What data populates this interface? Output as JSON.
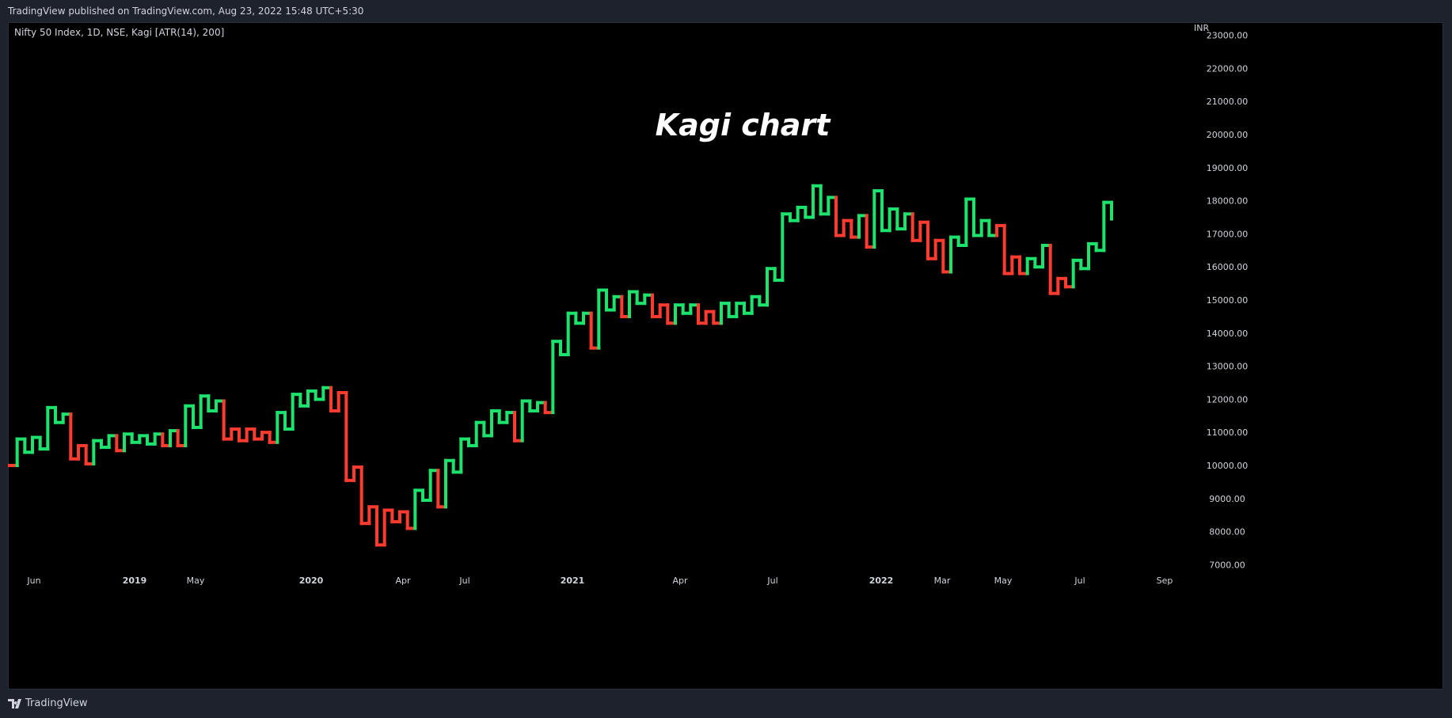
{
  "header": {
    "publish_text": "TradingView published on TradingView.com, Aug 23, 2022 15:48 UTC+5:30"
  },
  "legend": {
    "symbol_text": "Nifty 50 Index, 1D, NSE, Kagi [ATR(14), 200]"
  },
  "footer": {
    "brand": "TradingView",
    "logo_icon": "tradingview-logo-icon"
  },
  "colors": {
    "up": "#1de36c",
    "down": "#ff3b2f",
    "background": "#000000",
    "frame": "#1e222d"
  },
  "chart_data": {
    "type": "kagi",
    "title": "Kagi chart",
    "currency": "INR",
    "ylim": [
      6700,
      23300
    ],
    "y_ticks": [
      "7000.00",
      "8000.00",
      "9000.00",
      "10000.00",
      "11000.00",
      "12000.00",
      "13000.00",
      "14000.00",
      "15000.00",
      "16000.00",
      "17000.00",
      "18000.00",
      "19000.00",
      "20000.00",
      "21000.00",
      "22000.00",
      "23000.00"
    ],
    "x_ticks": [
      "Jun",
      "2019",
      "May",
      "2020",
      "Apr",
      "Jul",
      "2021",
      "Apr",
      "Jul",
      "2022",
      "Mar",
      "May",
      "Jul",
      "Sep"
    ],
    "x_bold": [
      "2019",
      "2020",
      "2021",
      "2022"
    ],
    "lines": [
      {
        "y": 10000,
        "c": "down"
      },
      {
        "y": 10800,
        "c": "up"
      },
      {
        "y": 10400,
        "c": "up"
      },
      {
        "y": 10850,
        "c": "up"
      },
      {
        "y": 10500,
        "c": "up"
      },
      {
        "y": 11750,
        "c": "up"
      },
      {
        "y": 11300,
        "c": "up"
      },
      {
        "y": 11550,
        "c": "up"
      },
      {
        "y": 10200,
        "c": "down"
      },
      {
        "y": 10600,
        "c": "down"
      },
      {
        "y": 10050,
        "c": "down"
      },
      {
        "y": 10750,
        "c": "up"
      },
      {
        "y": 10550,
        "c": "up"
      },
      {
        "y": 10900,
        "c": "up"
      },
      {
        "y": 10450,
        "c": "down"
      },
      {
        "y": 10950,
        "c": "up"
      },
      {
        "y": 10700,
        "c": "up"
      },
      {
        "y": 10900,
        "c": "up"
      },
      {
        "y": 10650,
        "c": "up"
      },
      {
        "y": 10950,
        "c": "up"
      },
      {
        "y": 10600,
        "c": "down"
      },
      {
        "y": 11050,
        "c": "up"
      },
      {
        "y": 10600,
        "c": "down"
      },
      {
        "y": 11800,
        "c": "up"
      },
      {
        "y": 11150,
        "c": "up"
      },
      {
        "y": 12100,
        "c": "up"
      },
      {
        "y": 11650,
        "c": "up"
      },
      {
        "y": 11950,
        "c": "up"
      },
      {
        "y": 10800,
        "c": "down"
      },
      {
        "y": 11100,
        "c": "down"
      },
      {
        "y": 10750,
        "c": "down"
      },
      {
        "y": 11100,
        "c": "down"
      },
      {
        "y": 10800,
        "c": "down"
      },
      {
        "y": 11000,
        "c": "down"
      },
      {
        "y": 10700,
        "c": "down"
      },
      {
        "y": 11600,
        "c": "up"
      },
      {
        "y": 11100,
        "c": "up"
      },
      {
        "y": 12150,
        "c": "up"
      },
      {
        "y": 11800,
        "c": "up"
      },
      {
        "y": 12250,
        "c": "up"
      },
      {
        "y": 12000,
        "c": "up"
      },
      {
        "y": 12350,
        "c": "up"
      },
      {
        "y": 11650,
        "c": "down"
      },
      {
        "y": 12200,
        "c": "down"
      },
      {
        "y": 9550,
        "c": "down"
      },
      {
        "y": 9950,
        "c": "down"
      },
      {
        "y": 8250,
        "c": "down"
      },
      {
        "y": 8750,
        "c": "down"
      },
      {
        "y": 7600,
        "c": "down"
      },
      {
        "y": 8650,
        "c": "down"
      },
      {
        "y": 8300,
        "c": "down"
      },
      {
        "y": 8600,
        "c": "down"
      },
      {
        "y": 8100,
        "c": "down"
      },
      {
        "y": 9250,
        "c": "up"
      },
      {
        "y": 8950,
        "c": "up"
      },
      {
        "y": 9850,
        "c": "up"
      },
      {
        "y": 8750,
        "c": "down"
      },
      {
        "y": 10150,
        "c": "up"
      },
      {
        "y": 9800,
        "c": "up"
      },
      {
        "y": 10800,
        "c": "up"
      },
      {
        "y": 10600,
        "c": "up"
      },
      {
        "y": 11300,
        "c": "up"
      },
      {
        "y": 10900,
        "c": "up"
      },
      {
        "y": 11650,
        "c": "up"
      },
      {
        "y": 11300,
        "c": "up"
      },
      {
        "y": 11600,
        "c": "up"
      },
      {
        "y": 10750,
        "c": "down"
      },
      {
        "y": 11950,
        "c": "up"
      },
      {
        "y": 11650,
        "c": "up"
      },
      {
        "y": 11900,
        "c": "up"
      },
      {
        "y": 11600,
        "c": "down"
      },
      {
        "y": 13750,
        "c": "up"
      },
      {
        "y": 13350,
        "c": "up"
      },
      {
        "y": 14600,
        "c": "up"
      },
      {
        "y": 14300,
        "c": "up"
      },
      {
        "y": 14600,
        "c": "up"
      },
      {
        "y": 13550,
        "c": "down"
      },
      {
        "y": 15300,
        "c": "up"
      },
      {
        "y": 14700,
        "c": "up"
      },
      {
        "y": 15100,
        "c": "up"
      },
      {
        "y": 14500,
        "c": "down"
      },
      {
        "y": 15250,
        "c": "up"
      },
      {
        "y": 14900,
        "c": "up"
      },
      {
        "y": 15150,
        "c": "up"
      },
      {
        "y": 14500,
        "c": "down"
      },
      {
        "y": 14850,
        "c": "down"
      },
      {
        "y": 14300,
        "c": "down"
      },
      {
        "y": 14850,
        "c": "up"
      },
      {
        "y": 14600,
        "c": "up"
      },
      {
        "y": 14850,
        "c": "up"
      },
      {
        "y": 14300,
        "c": "down"
      },
      {
        "y": 14650,
        "c": "down"
      },
      {
        "y": 14300,
        "c": "down"
      },
      {
        "y": 14900,
        "c": "up"
      },
      {
        "y": 14500,
        "c": "up"
      },
      {
        "y": 14900,
        "c": "up"
      },
      {
        "y": 14600,
        "c": "up"
      },
      {
        "y": 15100,
        "c": "up"
      },
      {
        "y": 14850,
        "c": "up"
      },
      {
        "y": 15950,
        "c": "up"
      },
      {
        "y": 15600,
        "c": "up"
      },
      {
        "y": 17600,
        "c": "up"
      },
      {
        "y": 17400,
        "c": "up"
      },
      {
        "y": 17800,
        "c": "up"
      },
      {
        "y": 17500,
        "c": "up"
      },
      {
        "y": 18450,
        "c": "up"
      },
      {
        "y": 17600,
        "c": "up"
      },
      {
        "y": 18100,
        "c": "up"
      },
      {
        "y": 16950,
        "c": "down"
      },
      {
        "y": 17400,
        "c": "down"
      },
      {
        "y": 16900,
        "c": "down"
      },
      {
        "y": 17550,
        "c": "up"
      },
      {
        "y": 16600,
        "c": "down"
      },
      {
        "y": 18300,
        "c": "up"
      },
      {
        "y": 17100,
        "c": "up"
      },
      {
        "y": 17750,
        "c": "up"
      },
      {
        "y": 17150,
        "c": "up"
      },
      {
        "y": 17600,
        "c": "up"
      },
      {
        "y": 16800,
        "c": "down"
      },
      {
        "y": 17350,
        "c": "down"
      },
      {
        "y": 16250,
        "c": "down"
      },
      {
        "y": 16800,
        "c": "down"
      },
      {
        "y": 15850,
        "c": "down"
      },
      {
        "y": 16900,
        "c": "up"
      },
      {
        "y": 16650,
        "c": "up"
      },
      {
        "y": 18050,
        "c": "up"
      },
      {
        "y": 16950,
        "c": "up"
      },
      {
        "y": 17400,
        "c": "up"
      },
      {
        "y": 16950,
        "c": "up"
      },
      {
        "y": 17250,
        "c": "down"
      },
      {
        "y": 15800,
        "c": "down"
      },
      {
        "y": 16300,
        "c": "down"
      },
      {
        "y": 15800,
        "c": "down"
      },
      {
        "y": 16250,
        "c": "up"
      },
      {
        "y": 16000,
        "c": "up"
      },
      {
        "y": 16650,
        "c": "up"
      },
      {
        "y": 15200,
        "c": "down"
      },
      {
        "y": 15650,
        "c": "down"
      },
      {
        "y": 15400,
        "c": "down"
      },
      {
        "y": 16200,
        "c": "up"
      },
      {
        "y": 15950,
        "c": "up"
      },
      {
        "y": 16700,
        "c": "up"
      },
      {
        "y": 16500,
        "c": "up"
      },
      {
        "y": 17950,
        "c": "up"
      },
      {
        "y": 17450,
        "c": "up"
      }
    ]
  }
}
